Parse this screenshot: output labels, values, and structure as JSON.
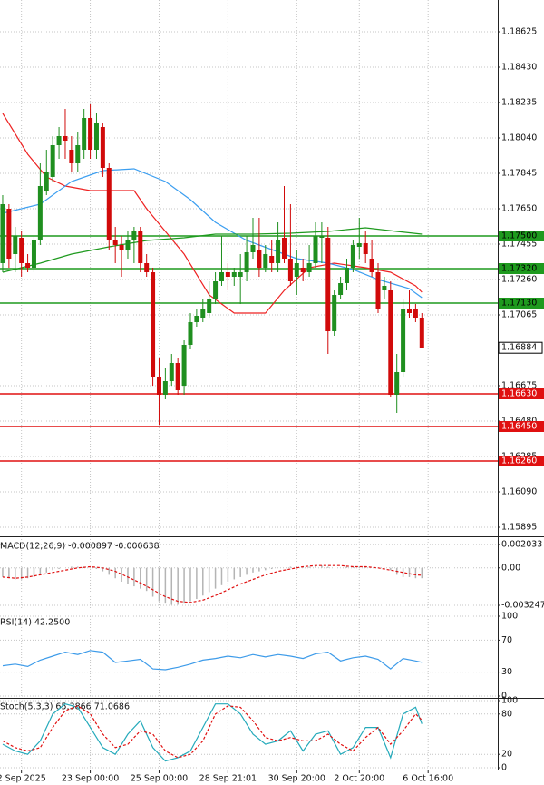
{
  "chart_data": [
    {
      "type": "candlestick",
      "ylim": [
        1.1585,
        1.188
      ],
      "yticks": [
        {
          "value": 1.18625,
          "label": "1.18625"
        },
        {
          "value": 1.1843,
          "label": "1.18430"
        },
        {
          "value": 1.18235,
          "label": "1.18235"
        },
        {
          "value": 1.1804,
          "label": "1.18040"
        },
        {
          "value": 1.17845,
          "label": "1.17845"
        },
        {
          "value": 1.1765,
          "label": "1.17650"
        },
        {
          "value": 1.17455,
          "label": "1.17455"
        },
        {
          "value": 1.1726,
          "label": "1.17260"
        },
        {
          "value": 1.17065,
          "label": "1.17065"
        },
        {
          "value": 1.16675,
          "label": "1.16675"
        },
        {
          "value": 1.1648,
          "label": "1.16480"
        },
        {
          "value": 1.16285,
          "label": "1.16285"
        },
        {
          "value": 1.1609,
          "label": "1.16090"
        },
        {
          "value": 1.15895,
          "label": "1.15895"
        }
      ],
      "grid": true,
      "up_color": "#1f8f1f",
      "down_color": "#d10a0a",
      "open": [
        1.1735,
        1.1765,
        1.174,
        1.1749,
        1.1735,
        1.17325,
        1.17475,
        1.1775,
        1.17825,
        1.18,
        1.1805,
        1.17975,
        1.179,
        1.17975,
        1.1815,
        1.17975,
        1.181,
        1.17875,
        1.17475,
        1.1745,
        1.17425,
        1.17475,
        1.17525,
        1.1735,
        1.173,
        1.16725,
        1.16625,
        1.167,
        1.168,
        1.16675,
        1.169,
        1.17025,
        1.1705,
        1.17075,
        1.1715,
        1.1725,
        1.173,
        1.17275,
        1.17275,
        1.173,
        1.1741,
        1.17425,
        1.17325,
        1.1739,
        1.1735,
        1.1749,
        1.17375,
        1.17275,
        1.17325,
        1.173,
        1.1735,
        1.1749,
        1.1749,
        1.16975,
        1.17175,
        1.1724,
        1.17325,
        1.1744,
        1.1746,
        1.17375,
        1.173,
        1.172,
        1.172,
        1.16625,
        1.1675,
        1.171,
        1.171,
        1.1705
      ],
      "high": [
        1.17725,
        1.17675,
        1.1755,
        1.17525,
        1.174,
        1.175,
        1.179,
        1.17975,
        1.1805,
        1.181,
        1.182,
        1.1805,
        1.18075,
        1.182,
        1.18225,
        1.18175,
        1.18125,
        1.179,
        1.1755,
        1.175,
        1.17525,
        1.1755,
        1.1755,
        1.174,
        1.17325,
        1.16825,
        1.16775,
        1.1685,
        1.16825,
        1.16925,
        1.17075,
        1.171,
        1.1715,
        1.1725,
        1.173,
        1.175,
        1.1735,
        1.17325,
        1.174,
        1.175,
        1.176,
        1.176,
        1.1745,
        1.17475,
        1.17575,
        1.17775,
        1.17675,
        1.17425,
        1.17375,
        1.1745,
        1.17575,
        1.17575,
        1.1755,
        1.172,
        1.17275,
        1.17375,
        1.17475,
        1.176,
        1.17525,
        1.17475,
        1.1735,
        1.17275,
        1.1725,
        1.1685,
        1.1715,
        1.172,
        1.17125,
        1.17075
      ],
      "low": [
        1.173,
        1.17325,
        1.173,
        1.17275,
        1.173,
        1.173,
        1.1745,
        1.17725,
        1.178,
        1.17925,
        1.17925,
        1.1785,
        1.1785,
        1.17925,
        1.17925,
        1.17925,
        1.17825,
        1.17425,
        1.1735,
        1.17275,
        1.17375,
        1.1735,
        1.173,
        1.17275,
        1.16675,
        1.1646,
        1.166,
        1.16675,
        1.16625,
        1.16625,
        1.16875,
        1.17,
        1.17025,
        1.1705,
        1.17125,
        1.17225,
        1.172,
        1.17225,
        1.17125,
        1.1725,
        1.17375,
        1.17275,
        1.173,
        1.173,
        1.173,
        1.1735,
        1.17225,
        1.17175,
        1.1725,
        1.17275,
        1.17325,
        1.1735,
        1.1685,
        1.1695,
        1.1715,
        1.172,
        1.173,
        1.17375,
        1.1735,
        1.17275,
        1.17075,
        1.1715,
        1.1661,
        1.16525,
        1.16725,
        1.1705,
        1.17025,
        1.1688
      ],
      "close": [
        1.17675,
        1.17375,
        1.175,
        1.1735,
        1.17325,
        1.17475,
        1.17775,
        1.1785,
        1.18,
        1.1805,
        1.18025,
        1.179,
        1.18,
        1.1815,
        1.17975,
        1.18125,
        1.17875,
        1.17475,
        1.1745,
        1.17425,
        1.17475,
        1.17525,
        1.1735,
        1.173,
        1.16725,
        1.16625,
        1.167,
        1.168,
        1.1665,
        1.169,
        1.17025,
        1.1706,
        1.171,
        1.1715,
        1.1725,
        1.173,
        1.17275,
        1.173,
        1.173,
        1.1741,
        1.1745,
        1.17325,
        1.174,
        1.1735,
        1.17475,
        1.17375,
        1.1725,
        1.1735,
        1.173,
        1.1735,
        1.175,
        1.175,
        1.16975,
        1.17175,
        1.1724,
        1.17325,
        1.1745,
        1.1746,
        1.174,
        1.173,
        1.171,
        1.17225,
        1.16625,
        1.1675,
        1.171,
        1.17075,
        1.1705,
        1.16884
      ],
      "lines": [
        {
          "color": "#ee2222",
          "x": [
            0,
            4,
            7,
            10,
            14,
            21,
            23,
            29,
            33,
            37,
            42,
            45,
            49,
            53,
            58,
            62,
            66,
            67
          ],
          "values": [
            1.18175,
            1.1795,
            1.17825,
            1.17775,
            1.1775,
            1.1775,
            1.1765,
            1.174,
            1.17175,
            1.17075,
            1.17075,
            1.172,
            1.17325,
            1.1735,
            1.17325,
            1.173,
            1.17225,
            1.1719
          ]
        },
        {
          "color": "#3b9ef0",
          "x": [
            0,
            6,
            11,
            16,
            21,
            26,
            30,
            34,
            39,
            43,
            47,
            52,
            56,
            60,
            65,
            67
          ],
          "values": [
            1.17625,
            1.17675,
            1.178,
            1.1786,
            1.1787,
            1.178,
            1.177,
            1.17575,
            1.17475,
            1.17425,
            1.17375,
            1.1735,
            1.17315,
            1.1726,
            1.1721,
            1.1716
          ]
        },
        {
          "color": "#1e9a1e",
          "x": [
            0,
            6,
            11,
            17,
            23,
            29,
            34,
            40,
            46,
            52,
            58,
            63,
            67
          ],
          "values": [
            1.173,
            1.1735,
            1.174,
            1.1744,
            1.17475,
            1.1749,
            1.1751,
            1.1751,
            1.17515,
            1.17525,
            1.17545,
            1.17525,
            1.1751
          ]
        }
      ],
      "levels": [
        {
          "value": 1.175,
          "label": "1.17500",
          "color": "#1e9a1e"
        },
        {
          "value": 1.1732,
          "label": "1.17320",
          "color": "#1e9a1e"
        },
        {
          "value": 1.1713,
          "label": "1.17130",
          "color": "#1e9a1e"
        },
        {
          "value": 1.1663,
          "label": "1.16630",
          "color": "#e01010"
        },
        {
          "value": 1.1645,
          "label": "1.16450",
          "color": "#e01010"
        },
        {
          "value": 1.1626,
          "label": "1.16260",
          "color": "#e01010"
        }
      ],
      "last_price": 1.16884
    },
    {
      "type": "macd",
      "title": "MACD(12,26,9) -0.000897 -0.000638",
      "ylim": [
        -0.00364,
        0.0025
      ],
      "yticks": [
        0.002033,
        {
          "value": 0,
          "label": "0.00"
        },
        -0.003247
      ],
      "histogram": {
        "color": "#b4b4b4",
        "values": [
          -0.0008,
          -0.0009,
          -0.001,
          -0.001,
          -0.0009,
          -0.0008,
          -0.0006,
          -0.0004,
          -0.0002,
          -0.0001,
          0,
          0.0001,
          0.0001,
          0.0001,
          0,
          -0.0001,
          -0.0003,
          -0.0006,
          -0.0009,
          -0.0012,
          -0.0014,
          -0.0016,
          -0.0018,
          -0.002,
          -0.0025,
          -0.0029,
          -0.0031,
          -0.0032,
          -0.0032,
          -0.0031,
          -0.0029,
          -0.0027,
          -0.0024,
          -0.0021,
          -0.0018,
          -0.0015,
          -0.0012,
          -0.001,
          -0.0008,
          -0.0006,
          -0.0004,
          -0.0003,
          -0.0002,
          -0.0001,
          0,
          0,
          0.0001,
          0.0001,
          0.0001,
          0.0001,
          0.0002,
          0.0002,
          0.0001,
          0,
          0,
          0.0001,
          0.0001,
          0.0001,
          0.0001,
          0,
          0,
          -0.0001,
          -0.0002,
          -0.0006,
          -0.0008,
          -0.0008,
          -0.0009,
          -0.0009
        ]
      },
      "signal": {
        "color": "#e01010",
        "style": "dashed",
        "x": [
          0,
          2,
          4,
          6,
          8,
          10,
          12,
          14,
          16,
          18,
          20,
          22,
          24,
          26,
          28,
          30,
          32,
          34,
          36,
          38,
          40,
          42,
          44,
          46,
          48,
          50,
          52,
          54,
          56,
          58,
          60,
          62,
          64,
          66,
          67
        ],
        "values": [
          -0.0008,
          -0.0009,
          -0.0008,
          -0.0006,
          -0.0004,
          -0.0002,
          0,
          0.0001,
          0,
          -0.0003,
          -0.0008,
          -0.0013,
          -0.0019,
          -0.0025,
          -0.0029,
          -0.003,
          -0.0028,
          -0.0024,
          -0.0019,
          -0.0014,
          -0.001,
          -0.0006,
          -0.0003,
          -0.0001,
          0.0001,
          0.0002,
          0.0002,
          0.0002,
          0.0001,
          0.0001,
          0,
          -0.0002,
          -0.0004,
          -0.0006,
          -0.000638
        ]
      }
    },
    {
      "type": "line",
      "title": "RSI(14) 42.2500",
      "ylim": [
        0,
        100
      ],
      "yticks": [
        100,
        70,
        30,
        0
      ],
      "series": [
        {
          "color": "#3d9be9",
          "x": [
            0,
            2,
            4,
            6,
            8,
            10,
            12,
            14,
            16,
            18,
            20,
            22,
            24,
            26,
            28,
            30,
            32,
            34,
            36,
            38,
            40,
            42,
            44,
            46,
            48,
            50,
            52,
            54,
            56,
            58,
            60,
            62,
            64,
            66,
            67
          ],
          "values": [
            38,
            40,
            37,
            45,
            50,
            55,
            52,
            57,
            55,
            42,
            44,
            46,
            34,
            33,
            36,
            40,
            45,
            47,
            50,
            48,
            52,
            49,
            52,
            50,
            47,
            53,
            55,
            44,
            48,
            50,
            46,
            34,
            47,
            44,
            42.25
          ]
        }
      ]
    },
    {
      "type": "line",
      "title": "Stoch(5,3,3) 65.3866 71.0686",
      "ylim": [
        0,
        100
      ],
      "yticks": [
        100,
        80,
        20,
        0
      ],
      "xlim": [
        -0.43,
        79.13
      ],
      "xticks": [
        {
          "value": 3,
          "label": "2 Sep 2025"
        },
        {
          "value": 14,
          "label": "23 Sep 00:00"
        },
        {
          "value": 25,
          "label": "25 Sep 00:00"
        },
        {
          "value": 36,
          "label": "28 Sep 21:01"
        },
        {
          "value": 47,
          "label": "30 Sep 20:00"
        },
        {
          "value": 57,
          "label": "2 Oct 20:00"
        },
        {
          "value": 68,
          "label": "6 Oct 16:00"
        }
      ],
      "series": [
        {
          "color": "#25aabb",
          "x": [
            0,
            2,
            4,
            6,
            8,
            10,
            12,
            14,
            16,
            18,
            20,
            22,
            24,
            26,
            28,
            30,
            32,
            34,
            36,
            38,
            40,
            42,
            44,
            46,
            48,
            50,
            52,
            54,
            56,
            58,
            60,
            62,
            64,
            66,
            67
          ],
          "values": [
            35,
            25,
            20,
            40,
            80,
            95,
            90,
            60,
            30,
            20,
            50,
            70,
            30,
            10,
            15,
            25,
            60,
            95,
            95,
            80,
            50,
            35,
            40,
            55,
            25,
            50,
            55,
            20,
            30,
            60,
            60,
            15,
            80,
            90,
            65.3866
          ]
        },
        {
          "color": "#e01010",
          "style": "dashed",
          "x": [
            0,
            2,
            4,
            6,
            8,
            10,
            12,
            14,
            16,
            18,
            20,
            22,
            24,
            26,
            28,
            30,
            32,
            34,
            36,
            38,
            40,
            42,
            44,
            46,
            48,
            50,
            52,
            54,
            56,
            58,
            60,
            62,
            64,
            66,
            67
          ],
          "values": [
            40,
            30,
            25,
            30,
            60,
            85,
            92,
            80,
            50,
            30,
            35,
            55,
            50,
            25,
            15,
            20,
            40,
            80,
            92,
            90,
            70,
            45,
            40,
            45,
            40,
            40,
            50,
            35,
            25,
            45,
            60,
            35,
            55,
            80,
            71.0686
          ]
        }
      ]
    }
  ]
}
